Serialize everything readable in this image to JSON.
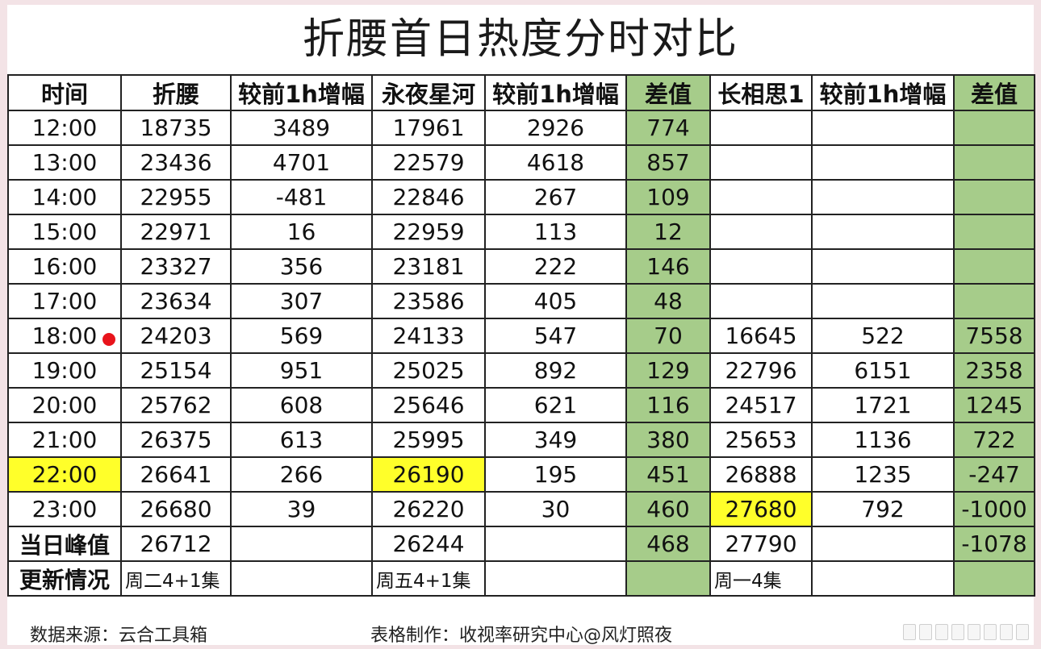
{
  "title": "折腰首日热度分时对比",
  "headers": [
    "时间",
    "折腰",
    "较前1h增幅",
    "永夜星河",
    "较前1h增幅",
    "差值",
    "长相思1",
    "较前1h增幅",
    "差值"
  ],
  "rows": [
    [
      "12:00",
      "18735",
      "3489",
      "17961",
      "2926",
      "774",
      "",
      "",
      ""
    ],
    [
      "13:00",
      "23436",
      "4701",
      "22579",
      "4618",
      "857",
      "",
      "",
      ""
    ],
    [
      "14:00",
      "22955",
      "-481",
      "22846",
      "267",
      "109",
      "",
      "",
      ""
    ],
    [
      "15:00",
      "22971",
      "16",
      "22959",
      "113",
      "12",
      "",
      "",
      ""
    ],
    [
      "16:00",
      "23327",
      "356",
      "23181",
      "222",
      "146",
      "",
      "",
      ""
    ],
    [
      "17:00",
      "23634",
      "307",
      "23586",
      "405",
      "48",
      "",
      "",
      ""
    ],
    [
      "18:00",
      "24203",
      "569",
      "24133",
      "547",
      "70",
      "16645",
      "522",
      "7558"
    ],
    [
      "19:00",
      "25154",
      "951",
      "25025",
      "892",
      "129",
      "22796",
      "6151",
      "2358"
    ],
    [
      "20:00",
      "25762",
      "608",
      "25646",
      "621",
      "116",
      "24517",
      "1721",
      "1245"
    ],
    [
      "21:00",
      "26375",
      "613",
      "25995",
      "349",
      "380",
      "25653",
      "1136",
      "722"
    ],
    [
      "22:00",
      "26641",
      "266",
      "26190",
      "195",
      "451",
      "26888",
      "1235",
      "-247"
    ],
    [
      "23:00",
      "26680",
      "39",
      "26220",
      "30",
      "460",
      "27680",
      "792",
      "-1000"
    ]
  ],
  "peak_row": [
    "当日峰值",
    "26712",
    "",
    "26244",
    "",
    "468",
    "27790",
    "",
    "-1078"
  ],
  "update_row": [
    "更新情况",
    "周二4+1集",
    "",
    "周五4+1集",
    "",
    "",
    "周一4集",
    "",
    ""
  ],
  "footer": {
    "source": "数据来源：云合工具箱",
    "maker": "表格制作：收视率研究中心@风灯照夜"
  },
  "colors": {
    "diff_column": "#a6cc8a",
    "highlight": "#ffff2a",
    "marker_dot": "#e8141b"
  }
}
